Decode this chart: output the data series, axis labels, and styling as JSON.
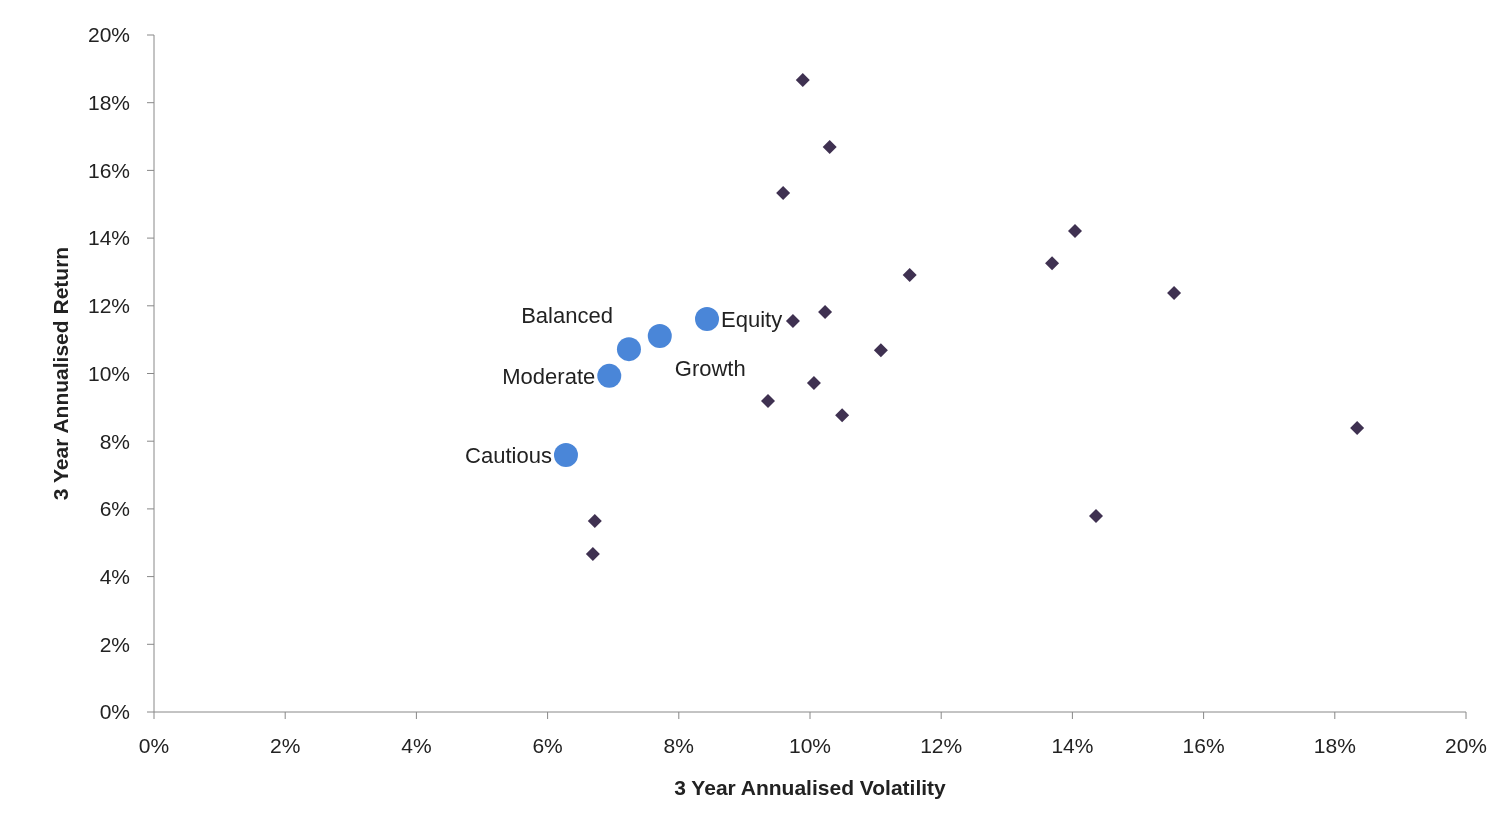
{
  "chart_data": {
    "type": "scatter",
    "xlabel": "3 Year Annualised Volatility",
    "ylabel": "3 Year Annualised Return",
    "xlim": [
      0,
      20
    ],
    "ylim": [
      0,
      20
    ],
    "xticks": [
      {
        "value": 0,
        "label": "0%"
      },
      {
        "value": 2,
        "label": "2%"
      },
      {
        "value": 4,
        "label": "4%"
      },
      {
        "value": 6,
        "label": "6%"
      },
      {
        "value": 8,
        "label": "8%"
      },
      {
        "value": 10,
        "label": "10%"
      },
      {
        "value": 12,
        "label": "12%"
      },
      {
        "value": 14,
        "label": "14%"
      },
      {
        "value": 16,
        "label": "16%"
      },
      {
        "value": 18,
        "label": "18%"
      },
      {
        "value": 20,
        "label": "20%"
      }
    ],
    "yticks": [
      {
        "value": 0,
        "label": "0%"
      },
      {
        "value": 2,
        "label": "2%"
      },
      {
        "value": 4,
        "label": "4%"
      },
      {
        "value": 6,
        "label": "6%"
      },
      {
        "value": 8,
        "label": "8%"
      },
      {
        "value": 10,
        "label": "10%"
      },
      {
        "value": 12,
        "label": "12%"
      },
      {
        "value": 14,
        "label": "14%"
      },
      {
        "value": 16,
        "label": "16%"
      },
      {
        "value": 18,
        "label": "18%"
      },
      {
        "value": 20,
        "label": "20%"
      }
    ],
    "grid": false,
    "series": [
      {
        "color": "#3f3151",
        "marker": "diamond",
        "x": [
          9.89,
          10.3,
          9.59,
          14.04,
          13.69,
          11.52,
          15.55,
          10.23,
          9.74,
          11.08,
          10.06,
          9.36,
          10.49,
          18.34,
          6.72,
          14.36,
          6.69
        ],
        "values": [
          18.67,
          16.69,
          15.33,
          14.21,
          13.26,
          12.91,
          12.38,
          11.82,
          11.55,
          10.69,
          9.72,
          9.19,
          8.77,
          8.39,
          5.64,
          5.79,
          4.67
        ]
      },
      {
        "color": "#4a86d8",
        "marker": "circle",
        "x": [
          6.28,
          6.94,
          7.24,
          7.71,
          8.43
        ],
        "values": [
          7.59,
          9.93,
          10.72,
          11.11,
          11.61
        ]
      }
    ],
    "annotations": [
      {
        "text": "Cautious",
        "x": 6.28,
        "y": 7.59
      },
      {
        "text": "Moderate",
        "x": 6.94,
        "y": 9.93
      },
      {
        "text": "Balanced",
        "x": 7.24,
        "y": 10.72
      },
      {
        "text": "Growth",
        "x": 7.71,
        "y": 11.11
      },
      {
        "text": "Equity",
        "x": 8.43,
        "y": 11.61
      }
    ]
  }
}
